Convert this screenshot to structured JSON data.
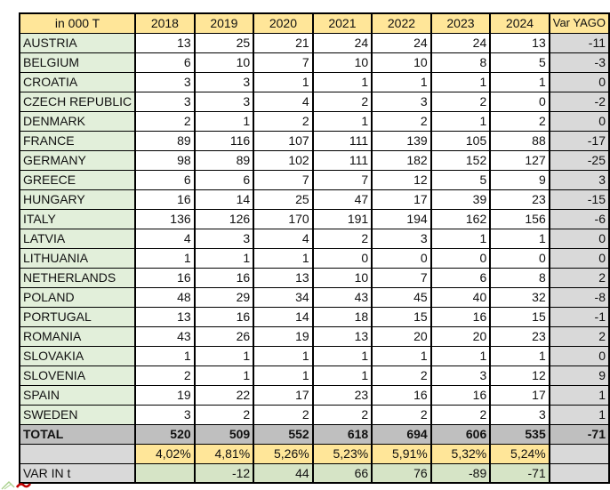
{
  "table": {
    "unit_header": "in 000 T",
    "year_headers": [
      "2018",
      "2019",
      "2020",
      "2021",
      "2022",
      "2023",
      "2024"
    ],
    "var_header": "Var YAGO",
    "countries": [
      {
        "name": "AUSTRIA",
        "values": [
          13,
          25,
          21,
          24,
          24,
          24,
          13
        ],
        "var_yago": -11
      },
      {
        "name": "BELGIUM",
        "values": [
          6,
          10,
          7,
          10,
          10,
          8,
          5
        ],
        "var_yago": -3
      },
      {
        "name": "CROATIA",
        "values": [
          3,
          3,
          1,
          1,
          1,
          1,
          1
        ],
        "var_yago": 0
      },
      {
        "name": "CZECH REPUBLIC",
        "values": [
          3,
          3,
          4,
          2,
          3,
          2,
          0
        ],
        "var_yago": -2
      },
      {
        "name": "DENMARK",
        "values": [
          2,
          1,
          2,
          1,
          2,
          1,
          2
        ],
        "var_yago": 0
      },
      {
        "name": "FRANCE",
        "values": [
          89,
          116,
          107,
          111,
          139,
          105,
          88
        ],
        "var_yago": -17
      },
      {
        "name": "GERMANY",
        "values": [
          98,
          89,
          102,
          111,
          182,
          152,
          127
        ],
        "var_yago": -25
      },
      {
        "name": "GREECE",
        "values": [
          6,
          6,
          7,
          7,
          12,
          5,
          9
        ],
        "var_yago": 3
      },
      {
        "name": "HUNGARY",
        "values": [
          16,
          14,
          25,
          47,
          17,
          39,
          23
        ],
        "var_yago": -15
      },
      {
        "name": "ITALY",
        "values": [
          136,
          126,
          170,
          191,
          194,
          162,
          156
        ],
        "var_yago": -6
      },
      {
        "name": "LATVIA",
        "values": [
          4,
          3,
          4,
          2,
          3,
          1,
          1
        ],
        "var_yago": 0
      },
      {
        "name": "LITHUANIA",
        "values": [
          1,
          1,
          1,
          0,
          0,
          0,
          0
        ],
        "var_yago": 0
      },
      {
        "name": "NETHERLANDS",
        "values": [
          16,
          16,
          13,
          10,
          7,
          6,
          8
        ],
        "var_yago": 2
      },
      {
        "name": "POLAND",
        "values": [
          48,
          29,
          34,
          43,
          45,
          40,
          32
        ],
        "var_yago": -8
      },
      {
        "name": "PORTUGAL",
        "values": [
          13,
          16,
          14,
          18,
          15,
          16,
          15
        ],
        "var_yago": -1
      },
      {
        "name": "ROMANIA",
        "values": [
          43,
          26,
          19,
          13,
          20,
          20,
          23
        ],
        "var_yago": 2
      },
      {
        "name": "SLOVAKIA",
        "values": [
          1,
          1,
          1,
          1,
          1,
          1,
          1
        ],
        "var_yago": 0
      },
      {
        "name": "SLOVENIA",
        "values": [
          2,
          1,
          1,
          1,
          2,
          3,
          12
        ],
        "var_yago": 9
      },
      {
        "name": "SPAIN",
        "values": [
          19,
          22,
          17,
          23,
          16,
          16,
          17
        ],
        "var_yago": 1
      },
      {
        "name": "SWEDEN",
        "values": [
          3,
          2,
          2,
          2,
          2,
          2,
          3
        ],
        "var_yago": 1
      }
    ],
    "total_row": {
      "label": "TOTAL",
      "values": [
        520,
        509,
        552,
        618,
        694,
        606,
        535
      ],
      "var_yago": -71
    },
    "share_row": {
      "label": "",
      "values": [
        "4,02%",
        "4,81%",
        "5,26%",
        "5,23%",
        "5,91%",
        "5,32%",
        "5,24%"
      ],
      "var_yago": ""
    },
    "var_in_row": {
      "label": "VAR IN t",
      "values": [
        "",
        "-12",
        "44",
        "66",
        "76",
        "-89",
        "-71"
      ],
      "var_yago": ""
    }
  },
  "colors": {
    "header_bg": "#FFE699",
    "country_bg": "#E2EFDA",
    "var_col_bg": "#D9D9D9",
    "total_row_bg": "#BFBFBF",
    "share_cell_bg": "#FFE699",
    "var_in_cell_bg": "#D6E4C6",
    "border": "#000000",
    "logo_green": "#A9D18E",
    "logo_red": "#C00000"
  },
  "icons": {
    "partial_logo": "partial-logo-icon"
  }
}
